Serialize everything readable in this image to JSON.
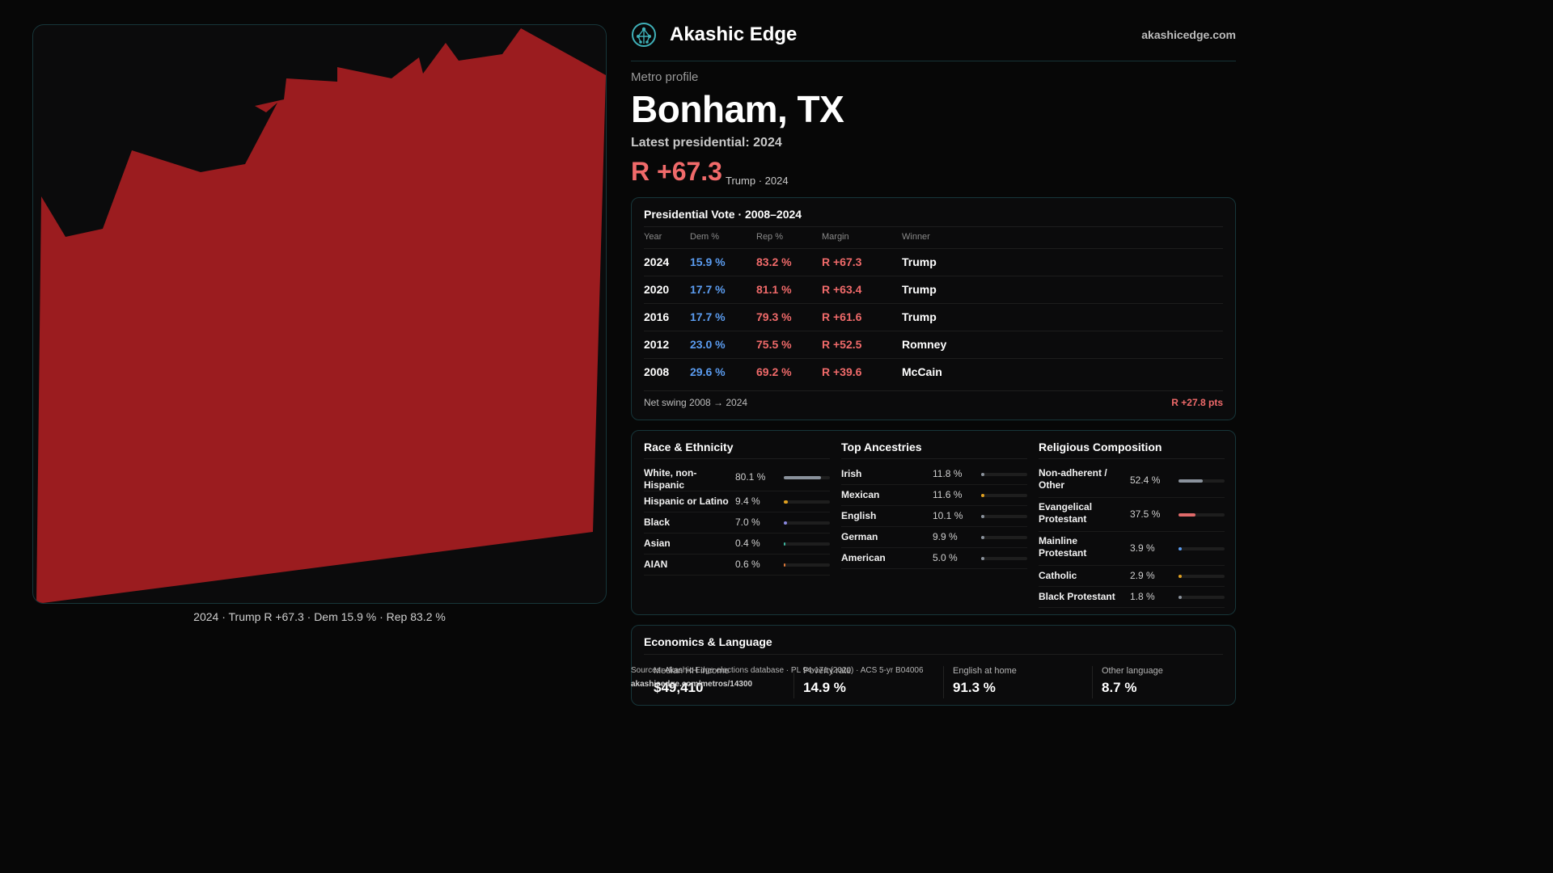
{
  "map": {
    "caption": "2024 · Trump R +67.3 · Dem 15.9 % · Rep 83.2 %",
    "fill_color": "#9b1c1f",
    "winner": "Trump"
  },
  "brand": {
    "name": "Akashic Edge",
    "url": "akashicedge.com",
    "logo_icon": "tree-network-icon"
  },
  "header": {
    "eyebrow": "Metro profile",
    "title": "Bonham, TX",
    "latest_label": "Latest presidential: 2024",
    "margin": "R +67.3",
    "margin_sub": "Trump · 2024"
  },
  "presidential": {
    "title": "Presidential Vote · 2008–2024",
    "columns": [
      "Year",
      "Dem %",
      "Rep %",
      "Margin",
      "Winner"
    ],
    "rows": [
      {
        "year": "2024",
        "dem": "15.9 %",
        "rep": "83.2 %",
        "margin": "R +67.3",
        "winner": "Trump"
      },
      {
        "year": "2020",
        "dem": "17.7 %",
        "rep": "81.1 %",
        "margin": "R +63.4",
        "winner": "Trump"
      },
      {
        "year": "2016",
        "dem": "17.7 %",
        "rep": "79.3 %",
        "margin": "R +61.6",
        "winner": "Trump"
      },
      {
        "year": "2012",
        "dem": "23.0 %",
        "rep": "75.5 %",
        "margin": "R +52.5",
        "winner": "Romney"
      },
      {
        "year": "2008",
        "dem": "29.6 %",
        "rep": "69.2 %",
        "margin": "R +39.6",
        "winner": "McCain"
      }
    ],
    "swing_label": "Net swing 2008 → 2024",
    "swing_value": "R +27.8 pts"
  },
  "race": {
    "title": "Race & Ethnicity",
    "items": [
      {
        "label": "White, non-Hispanic",
        "pct": "80.1 %",
        "value": 80.1,
        "color": "#8a929c"
      },
      {
        "label": "Hispanic or Latino",
        "pct": "9.4 %",
        "value": 9.4,
        "color": "#e0a020"
      },
      {
        "label": "Black",
        "pct": "7.0 %",
        "value": 7.0,
        "color": "#8a88e0"
      },
      {
        "label": "Asian",
        "pct": "0.4 %",
        "value": 0.4,
        "color": "#3fb8a0"
      },
      {
        "label": "AIAN",
        "pct": "0.6 %",
        "value": 0.6,
        "color": "#e07a3a"
      }
    ]
  },
  "ancestry": {
    "title": "Top Ancestries",
    "items": [
      {
        "label": "Irish",
        "pct": "11.8 %",
        "value": 11.8,
        "color": "#8a929c"
      },
      {
        "label": "Mexican",
        "pct": "11.6 %",
        "value": 11.6,
        "color": "#e0a020"
      },
      {
        "label": "English",
        "pct": "10.1 %",
        "value": 10.1,
        "color": "#8a929c"
      },
      {
        "label": "German",
        "pct": "9.9 %",
        "value": 9.9,
        "color": "#8a929c"
      },
      {
        "label": "American",
        "pct": "5.0 %",
        "value": 5.0,
        "color": "#8a929c"
      }
    ]
  },
  "religion": {
    "title": "Religious Composition",
    "items": [
      {
        "label": "Non-adherent / Other",
        "pct": "52.4 %",
        "value": 52.4,
        "color": "#8a929c"
      },
      {
        "label": "Evangelical Protestant",
        "pct": "37.5 %",
        "value": 37.5,
        "color": "#e06a6a"
      },
      {
        "label": "Mainline Protestant",
        "pct": "3.9 %",
        "value": 3.9,
        "color": "#5b9cf0"
      },
      {
        "label": "Catholic",
        "pct": "2.9 %",
        "value": 2.9,
        "color": "#e0a020"
      },
      {
        "label": "Black Protestant",
        "pct": "1.8 %",
        "value": 1.8,
        "color": "#8a929c"
      }
    ]
  },
  "economics": {
    "title": "Economics & Language",
    "stats": [
      {
        "label": "Median HH income",
        "value": "$49,410"
      },
      {
        "label": "Poverty rate",
        "value": "14.9 %"
      },
      {
        "label": "English at home",
        "value": "91.3 %"
      },
      {
        "label": "Other language",
        "value": "8.7 %"
      }
    ]
  },
  "source": {
    "text": "Sources: Akashic Edge elections database · PL 94-171 (2020) · ACS 5-yr B04006",
    "url": "akashicedge.com/metros/14300"
  }
}
